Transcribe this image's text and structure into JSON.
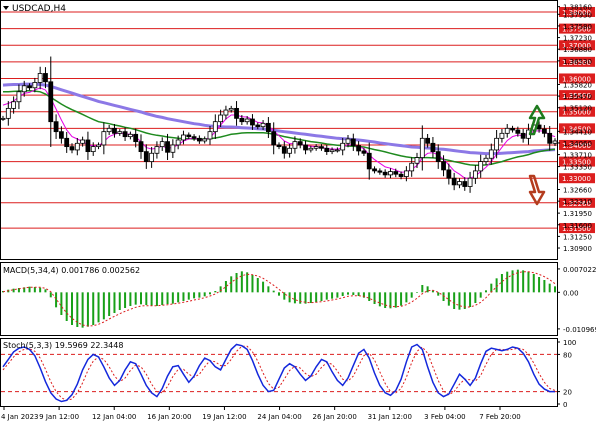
{
  "header": {
    "symbol_title": "USDCAD,H4"
  },
  "indicators": {
    "macd_label": "MACD(5,34,4) 0.001786 0.002562",
    "stoch_label": "Stoch(5,3,3) 19.5969 22.3448"
  },
  "colors": {
    "candle": "#000000",
    "level_line": "#dc1e1e",
    "level_box": "#dc1e1e",
    "ma_fast": "#e600e6",
    "ma_mid": "#1e8a1e",
    "ma_slow": "#8c78e6",
    "macd_hist": "#18a018",
    "macd_signal": "#dc1e1e",
    "stoch_main": "#1428dc",
    "stoch_signal": "#dc1e1e",
    "arrow_up": "#1e7a1e",
    "arrow_down": "#b43c1e"
  },
  "icons": {
    "up": "trend-up-arrow",
    "down": "trend-down-arrow",
    "menu": "triangle-down"
  },
  "chart_data": [
    {
      "type": "candlestick",
      "title": "USDCAD,H4",
      "ylim": [
        1.306,
        1.383
      ],
      "price_ticks": [
        "1.38160",
        "1.37930",
        "1.37580",
        "1.37230",
        "1.36880",
        "1.36530",
        "1.35820",
        "1.35470",
        "1.35120",
        "1.34410",
        "1.34060",
        "1.33710",
        "1.33350",
        "1.32660",
        "1.32310",
        "1.31950",
        "1.31600",
        "1.31250",
        "1.30900"
      ],
      "levels": [
        {
          "value": 1.38,
          "label": "1.38000"
        },
        {
          "value": 1.375,
          "label": "1.37500"
        },
        {
          "value": 1.37,
          "label": "1.37000"
        },
        {
          "value": 1.365,
          "label": "1.36500"
        },
        {
          "value": 1.36,
          "label": "1.36000"
        },
        {
          "value": 1.355,
          "label": "1.35500"
        },
        {
          "value": 1.35,
          "label": "1.35000"
        },
        {
          "value": 1.345,
          "label": "1.34500"
        },
        {
          "value": 1.34,
          "label": "1.34000"
        },
        {
          "value": 1.335,
          "label": "1.33500"
        },
        {
          "value": 1.33,
          "label": "1.33000"
        },
        {
          "value": 1.3226,
          "label": "1.32260"
        },
        {
          "value": 1.315,
          "label": "1.31500"
        }
      ],
      "x_labels": [
        "4 Jan 2023",
        "9 Jan 12:00",
        "12 Jan 04:00",
        "16 Jan 20:00",
        "19 Jan 12:00",
        "24 Jan 04:00",
        "26 Jan 20:00",
        "31 Jan 12:00",
        "3 Feb 04:00",
        "7 Feb 20:00"
      ],
      "close": [
        1.348,
        1.351,
        1.353,
        1.356,
        1.3578,
        1.3572,
        1.3588,
        1.3615,
        1.359,
        1.347,
        1.344,
        1.342,
        1.3395,
        1.3385,
        1.3405,
        1.3415,
        1.338,
        1.3395,
        1.34,
        1.344,
        1.345,
        1.3435,
        1.344,
        1.3425,
        1.3432,
        1.341,
        1.338,
        1.335,
        1.3375,
        1.3395,
        1.341,
        1.3378,
        1.34,
        1.3415,
        1.343,
        1.3425,
        1.342,
        1.3412,
        1.3418,
        1.344,
        1.347,
        1.349,
        1.3505,
        1.351,
        1.348,
        1.347,
        1.3478,
        1.346,
        1.3455,
        1.3465,
        1.344,
        1.34,
        1.3395,
        1.3375,
        1.339,
        1.341,
        1.34,
        1.3385,
        1.339,
        1.3395,
        1.339,
        1.338,
        1.3385,
        1.3385,
        1.3405,
        1.3418,
        1.3398,
        1.3382,
        1.3375,
        1.3328,
        1.3322,
        1.3318,
        1.331,
        1.332,
        1.3312,
        1.3305,
        1.3322,
        1.3345,
        1.3362,
        1.342,
        1.3405,
        1.338,
        1.335,
        1.3325,
        1.33,
        1.328,
        1.329,
        1.3275,
        1.33,
        1.3322,
        1.335,
        1.336,
        1.3385,
        1.342,
        1.3435,
        1.345,
        1.3445,
        1.3435,
        1.342,
        1.3445,
        1.346,
        1.3448,
        1.3435,
        1.3405,
        1.3412
      ],
      "ma_fast": [
        1.352,
        1.3525,
        1.3532,
        1.3545,
        1.3555,
        1.3558,
        1.3565,
        1.3572,
        1.3565,
        1.354,
        1.3508,
        1.3475,
        1.3445,
        1.3425,
        1.3418,
        1.341,
        1.34,
        1.3398,
        1.3397,
        1.341,
        1.3425,
        1.3432,
        1.3437,
        1.3432,
        1.3433,
        1.3424,
        1.341,
        1.3392,
        1.3388,
        1.339,
        1.3397,
        1.339,
        1.3393,
        1.34,
        1.3412,
        1.3418,
        1.342,
        1.3416,
        1.3416,
        1.3422,
        1.344,
        1.346,
        1.3478,
        1.349,
        1.349,
        1.3485,
        1.3484,
        1.3476,
        1.3468,
        1.3466,
        1.3458,
        1.3442,
        1.3428,
        1.3412,
        1.3404,
        1.3404,
        1.3403,
        1.3398,
        1.3396,
        1.3395,
        1.3393,
        1.3389,
        1.3388,
        1.3387,
        1.3393,
        1.3401,
        1.34,
        1.3395,
        1.3389,
        1.337,
        1.3356,
        1.3345,
        1.3334,
        1.333,
        1.3324,
        1.3318,
        1.3319,
        1.3327,
        1.3338,
        1.3362,
        1.3375,
        1.3377,
        1.337,
        1.3357,
        1.334,
        1.3322,
        1.3312,
        1.33,
        1.33,
        1.3307,
        1.332,
        1.3333,
        1.335,
        1.3372,
        1.3393,
        1.3413,
        1.3425,
        1.343,
        1.3428,
        1.3433,
        1.3441,
        1.3443,
        1.3441,
        1.343,
        1.3425
      ],
      "ma_mid": [
        1.356,
        1.356,
        1.3561,
        1.3562,
        1.3563,
        1.3563,
        1.3562,
        1.356,
        1.3553,
        1.3543,
        1.3533,
        1.3523,
        1.3514,
        1.3506,
        1.3499,
        1.3492,
        1.3484,
        1.3477,
        1.347,
        1.3467,
        1.3464,
        1.346,
        1.3457,
        1.3453,
        1.345,
        1.3446,
        1.3441,
        1.3436,
        1.3432,
        1.3429,
        1.3427,
        1.3424,
        1.3422,
        1.342,
        1.3419,
        1.3419,
        1.3418,
        1.3418,
        1.3418,
        1.3419,
        1.3421,
        1.3424,
        1.3428,
        1.3432,
        1.3434,
        1.3436,
        1.3437,
        1.3437,
        1.3437,
        1.3437,
        1.3435,
        1.3432,
        1.3429,
        1.3425,
        1.3422,
        1.3419,
        1.3416,
        1.3413,
        1.341,
        1.3408,
        1.3406,
        1.3403,
        1.3401,
        1.3399,
        1.3398,
        1.3397,
        1.3396,
        1.3395,
        1.3394,
        1.339,
        1.3386,
        1.3383,
        1.3379,
        1.3375,
        1.3371,
        1.3367,
        1.3364,
        1.3362,
        1.3361,
        1.3362,
        1.3362,
        1.3361,
        1.336,
        1.3357,
        1.3354,
        1.335,
        1.3347,
        1.3343,
        1.334,
        1.3339,
        1.3339,
        1.334,
        1.3342,
        1.3346,
        1.335,
        1.3355,
        1.336,
        1.3364,
        1.3367,
        1.3371,
        1.3376,
        1.338,
        1.3383,
        1.3385,
        1.3387
      ],
      "ma_slow": [
        1.358,
        1.3581,
        1.3582,
        1.3582,
        1.3583,
        1.3583,
        1.3583,
        1.3582,
        1.358,
        1.3576,
        1.3571,
        1.3566,
        1.3561,
        1.3556,
        1.3551,
        1.3546,
        1.3541,
        1.3536,
        1.3531,
        1.3527,
        1.3523,
        1.3519,
        1.3515,
        1.3511,
        1.3507,
        1.3503,
        1.3499,
        1.3494,
        1.349,
        1.3486,
        1.3483,
        1.3479,
        1.3476,
        1.3473,
        1.347,
        1.3467,
        1.3464,
        1.3462,
        1.3459,
        1.3457,
        1.3456,
        1.3455,
        1.3454,
        1.3454,
        1.3453,
        1.3452,
        1.3451,
        1.345,
        1.3449,
        1.3448,
        1.3446,
        1.3444,
        1.3442,
        1.344,
        1.3438,
        1.3436,
        1.3434,
        1.3432,
        1.343,
        1.3428,
        1.3426,
        1.3424,
        1.3422,
        1.342,
        1.3419,
        1.3418,
        1.3416,
        1.3415,
        1.3413,
        1.3411,
        1.3409,
        1.3406,
        1.3404,
        1.3402,
        1.34,
        1.3398,
        1.3396,
        1.3394,
        1.3393,
        1.3392,
        1.3391,
        1.339,
        1.3388,
        1.3387,
        1.3385,
        1.3383,
        1.3381,
        1.3379,
        1.3377,
        1.3376,
        1.3375,
        1.3374,
        1.3374,
        1.3374,
        1.3375,
        1.3376,
        1.3377,
        1.3378,
        1.3379,
        1.338,
        1.3382,
        1.3383,
        1.3384,
        1.3385,
        1.3386
      ]
    },
    {
      "type": "bar",
      "title": "MACD(5,34,4) 0.001786 0.002562",
      "ylim": [
        -0.0125,
        0.0085
      ],
      "ticks": [
        {
          "value": 0.007022,
          "label": "0.007022"
        },
        {
          "value": 0.0,
          "label": "0.00"
        },
        {
          "value": -0.010969,
          "label": "-0.010969"
        }
      ],
      "values": [
        0.0004,
        0.0008,
        0.0011,
        0.0013,
        0.0015,
        0.0017,
        0.0016,
        0.0014,
        0.0009,
        -0.0015,
        -0.0045,
        -0.0068,
        -0.0086,
        -0.0098,
        -0.0104,
        -0.0106,
        -0.0103,
        -0.0098,
        -0.009,
        -0.0081,
        -0.0071,
        -0.0062,
        -0.0053,
        -0.0047,
        -0.0041,
        -0.0037,
        -0.0036,
        -0.0038,
        -0.004,
        -0.0041,
        -0.0038,
        -0.0035,
        -0.0034,
        -0.003,
        -0.0026,
        -0.0022,
        -0.0018,
        -0.0016,
        -0.0012,
        -0.0006,
        0.0004,
        0.0018,
        0.0034,
        0.0048,
        0.0058,
        0.0063,
        0.006,
        0.0052,
        0.0043,
        0.0032,
        0.0018,
        0.0005,
        -0.001,
        -0.0022,
        -0.003,
        -0.0033,
        -0.0034,
        -0.0034,
        -0.0032,
        -0.003,
        -0.0026,
        -0.0022,
        -0.0019,
        -0.0016,
        -0.0011,
        -0.0007,
        -0.0008,
        -0.0011,
        -0.0016,
        -0.0026,
        -0.0035,
        -0.0042,
        -0.0047,
        -0.0048,
        -0.0046,
        -0.004,
        -0.003,
        -0.0016,
        0.0,
        0.0022,
        0.0018,
        0.0006,
        -0.001,
        -0.0026,
        -0.004,
        -0.005,
        -0.0052,
        -0.005,
        -0.0044,
        -0.0032,
        -0.0016,
        0.0006,
        0.0026,
        0.0042,
        0.0055,
        0.0062,
        0.0066,
        0.0068,
        0.0066,
        0.0062,
        0.0055,
        0.0046,
        0.0037,
        0.0026,
        0.0018
      ],
      "signal": [
        0.0002,
        0.0005,
        0.0008,
        0.0011,
        0.0013,
        0.0015,
        0.0015,
        0.0015,
        0.0012,
        0.0002,
        -0.002,
        -0.0042,
        -0.0062,
        -0.0078,
        -0.009,
        -0.0098,
        -0.0101,
        -0.01,
        -0.0096,
        -0.0089,
        -0.008,
        -0.0072,
        -0.0064,
        -0.0057,
        -0.0051,
        -0.0045,
        -0.0041,
        -0.004,
        -0.004,
        -0.004,
        -0.0039,
        -0.0037,
        -0.0035,
        -0.0033,
        -0.003,
        -0.0027,
        -0.0023,
        -0.002,
        -0.0016,
        -0.0011,
        -0.0005,
        0.0005,
        0.0017,
        0.003,
        0.0041,
        0.005,
        0.0054,
        0.0053,
        0.0049,
        0.0042,
        0.0032,
        0.0021,
        0.0009,
        -0.0004,
        -0.0014,
        -0.0022,
        -0.0027,
        -0.003,
        -0.0031,
        -0.003,
        -0.0028,
        -0.0026,
        -0.0023,
        -0.002,
        -0.0016,
        -0.0012,
        -0.001,
        -0.001,
        -0.0012,
        -0.0018,
        -0.0025,
        -0.0032,
        -0.0038,
        -0.0042,
        -0.0043,
        -0.0042,
        -0.0037,
        -0.0029,
        -0.0018,
        -0.0004,
        0.0005,
        0.0006,
        0.0,
        -0.001,
        -0.0022,
        -0.0033,
        -0.004,
        -0.0044,
        -0.0044,
        -0.0039,
        -0.003,
        -0.0016,
        0.0001,
        0.0017,
        0.0032,
        0.0044,
        0.0053,
        0.0059,
        0.0062,
        0.0062,
        0.0059,
        0.0054,
        0.0047,
        0.0038,
        0.0026
      ]
    },
    {
      "type": "line",
      "title": "Stoch(5,3,3) 19.5969 22.3448",
      "ylim": [
        0,
        100
      ],
      "ticks": [
        {
          "value": 100,
          "label": "100"
        },
        {
          "value": 80,
          "label": "80"
        },
        {
          "value": 20,
          "label": "20"
        },
        {
          "value": 0,
          "label": "0"
        }
      ],
      "levels": [
        80,
        20
      ],
      "main": [
        60,
        72,
        84,
        90,
        92,
        88,
        78,
        58,
        36,
        18,
        8,
        4,
        6,
        15,
        32,
        55,
        72,
        80,
        76,
        60,
        42,
        30,
        38,
        55,
        68,
        65,
        48,
        30,
        18,
        12,
        25,
        45,
        60,
        62,
        48,
        35,
        45,
        62,
        74,
        70,
        60,
        55,
        72,
        88,
        96,
        94,
        88,
        70,
        48,
        30,
        20,
        22,
        40,
        58,
        65,
        60,
        48,
        38,
        45,
        60,
        72,
        68,
        52,
        38,
        30,
        42,
        62,
        82,
        88,
        74,
        50,
        30,
        18,
        14,
        22,
        40,
        68,
        92,
        96,
        88,
        60,
        35,
        18,
        12,
        16,
        32,
        48,
        40,
        30,
        42,
        65,
        85,
        90,
        88,
        86,
        88,
        92,
        90,
        82,
        68,
        48,
        32,
        24,
        20,
        20
      ],
      "signal": [
        55,
        65,
        76,
        84,
        88,
        89,
        85,
        74,
        56,
        36,
        20,
        10,
        6,
        8,
        18,
        34,
        54,
        69,
        76,
        72,
        60,
        45,
        36,
        42,
        54,
        63,
        60,
        48,
        32,
        20,
        18,
        28,
        44,
        56,
        56,
        48,
        43,
        48,
        60,
        70,
        68,
        62,
        62,
        72,
        85,
        93,
        93,
        84,
        69,
        50,
        33,
        24,
        27,
        40,
        54,
        61,
        58,
        49,
        44,
        48,
        59,
        67,
        64,
        53,
        40,
        37,
        45,
        62,
        78,
        82,
        71,
        52,
        33,
        20,
        18,
        25,
        43,
        67,
        85,
        92,
        82,
        60,
        38,
        21,
        15,
        20,
        32,
        40,
        39,
        37,
        46,
        64,
        80,
        88,
        88,
        87,
        88,
        90,
        88,
        80,
        66,
        49,
        35,
        25,
        22
      ]
    }
  ]
}
